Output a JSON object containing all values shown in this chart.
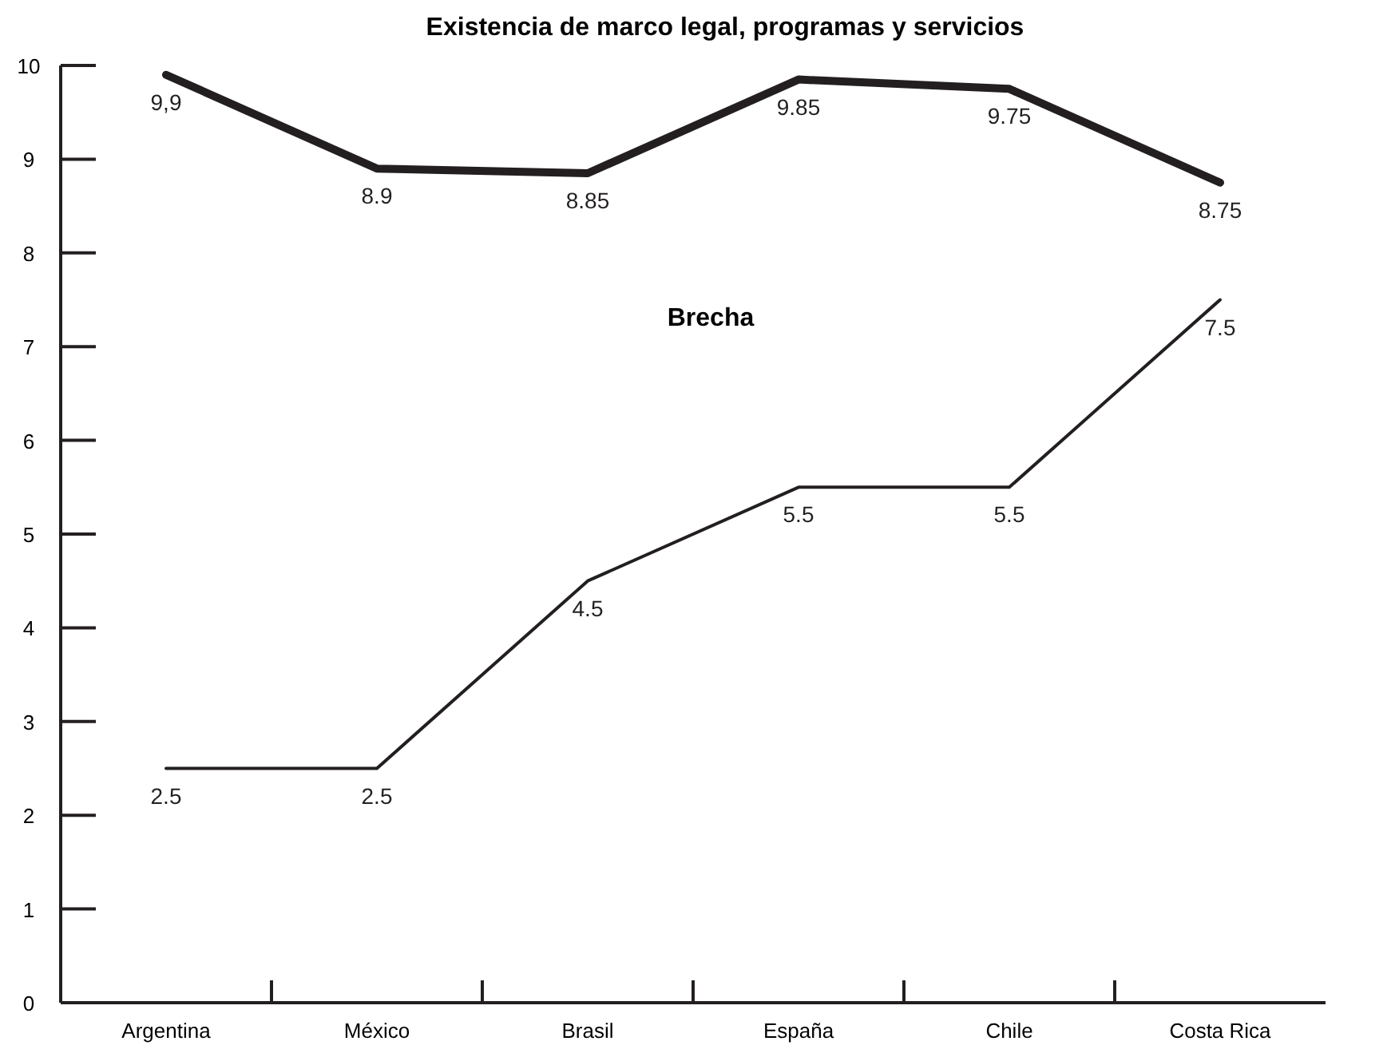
{
  "chart_data": {
    "type": "line",
    "title": "Existencia de marco legal, programas y servicios",
    "annotations": [
      "Brecha"
    ],
    "categories": [
      "Argentina",
      "México",
      "Brasil",
      "España",
      "Chile",
      "Costa Rica"
    ],
    "series": [
      {
        "color": "#231f20",
        "values": [
          9.9,
          8.9,
          8.85,
          9.85,
          9.75,
          8.75
        ],
        "value_labels": [
          "9,9",
          "8.9",
          "8.85",
          "9.85",
          "9.75",
          "8.75"
        ]
      },
      {
        "color": "#231f20",
        "values": [
          2.5,
          2.5,
          4.5,
          5.5,
          5.5,
          7.5
        ],
        "value_labels": [
          "2.5",
          "2.5",
          "4.5",
          "5.5",
          "5.5",
          "7.5"
        ]
      }
    ],
    "ylim": [
      0,
      10
    ],
    "yticks": [
      0,
      1,
      2,
      3,
      4,
      5,
      6,
      7,
      8,
      9,
      10
    ],
    "marker": "none",
    "line_style": "solid",
    "grid": false
  }
}
